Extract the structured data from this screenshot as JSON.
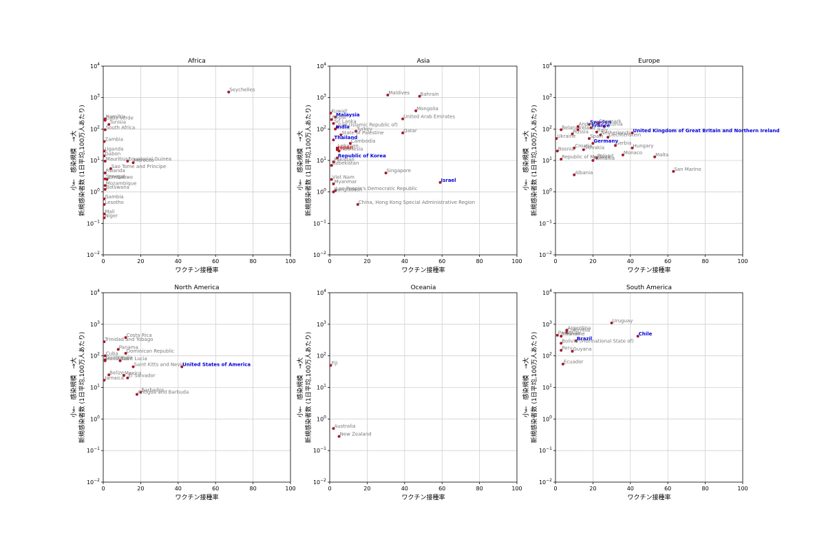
{
  "chart_data": [
    {
      "type": "scatter",
      "title": "Africa",
      "xlabel": "ワクチン接種率",
      "ylabel_line1": "小←　感染規模　→大",
      "ylabel_line2": "新規感染者数 (1日平均,100万人あたり)",
      "xlim": [
        0,
        100
      ],
      "ylim": [
        0.01,
        10000
      ],
      "yscale": "log",
      "grid": true,
      "x_ticks": [
        "0",
        "20",
        "40",
        "60",
        "80",
        "100"
      ],
      "points": [
        {
          "label": "Seychelles",
          "x": 67,
          "y": 1500
        },
        {
          "label": "Cabo Verde",
          "x": 1,
          "y": 190
        },
        {
          "label": "Namibia",
          "x": 1,
          "y": 210
        },
        {
          "label": "Tunisia",
          "x": 3,
          "y": 140
        },
        {
          "label": "South Africa",
          "x": 1,
          "y": 95
        },
        {
          "label": "Zambia",
          "x": 0.5,
          "y": 40
        },
        {
          "label": "Uganda",
          "x": 0.5,
          "y": 20
        },
        {
          "label": "Gabon",
          "x": 0.5,
          "y": 14
        },
        {
          "label": "Mauritius",
          "x": 1,
          "y": 9.5
        },
        {
          "label": "Equatorial Guinea",
          "x": 13,
          "y": 9.5
        },
        {
          "label": "Morocco",
          "x": 16,
          "y": 8.5
        },
        {
          "label": "Sao Tome and Principe",
          "x": 4,
          "y": 5.5
        },
        {
          "label": "Rwanda",
          "x": 1,
          "y": 4
        },
        {
          "label": "Zimbabwe",
          "x": 2,
          "y": 2.5
        },
        {
          "label": "Senegal",
          "x": 1,
          "y": 2.6
        },
        {
          "label": "Mozambique",
          "x": 1,
          "y": 1.6
        },
        {
          "label": "Botswana",
          "x": 1,
          "y": 1.2
        },
        {
          "label": "Gambia",
          "x": 0.5,
          "y": 0.6
        },
        {
          "label": "Lesotho",
          "x": 0.5,
          "y": 0.4
        },
        {
          "label": "Mali",
          "x": 0.5,
          "y": 0.2
        },
        {
          "label": "Niger",
          "x": 0.5,
          "y": 0.15
        }
      ]
    },
    {
      "type": "scatter",
      "title": "Asia",
      "xlabel": "ワクチン接種率",
      "ylabel_line1": "小←　感染規模　→大",
      "ylabel_line2": "新規感染者数 (1日平均,100万人あたり)",
      "xlim": [
        0,
        100
      ],
      "ylim": [
        0.01,
        10000
      ],
      "yscale": "log",
      "grid": true,
      "x_ticks": [
        "0",
        "20",
        "40",
        "60",
        "80",
        "100"
      ],
      "points": [
        {
          "label": "Maldives",
          "x": 31,
          "y": 1200
        },
        {
          "label": "Bahrain",
          "x": 48,
          "y": 1100
        },
        {
          "label": "Mongolia",
          "x": 46,
          "y": 380
        },
        {
          "label": "United Arab Emirates",
          "x": 39,
          "y": 210
        },
        {
          "label": "Kuwait",
          "x": 0.5,
          "y": 320
        },
        {
          "label": "Malaysia",
          "x": 3,
          "y": 240,
          "highlight": true
        },
        {
          "label": "Nepal",
          "x": 1,
          "y": 200
        },
        {
          "label": "Sri Lanka",
          "x": 2,
          "y": 150
        },
        {
          "label": "Iran (Islamic Republic of)",
          "x": 4,
          "y": 115
        },
        {
          "label": "India",
          "x": 3,
          "y": 100,
          "highlight": true
        },
        {
          "label": "Turkey",
          "x": 14,
          "y": 85
        },
        {
          "label": "Qatar",
          "x": 39,
          "y": 75
        },
        {
          "label": "State of Palestine",
          "x": 6,
          "y": 65
        },
        {
          "label": "Thailand",
          "x": 2,
          "y": 45,
          "highlight": true
        },
        {
          "label": "Cambodia",
          "x": 11,
          "y": 35
        },
        {
          "label": "Lebanon",
          "x": 4,
          "y": 25
        },
        {
          "label": "Japan",
          "x": 4,
          "y": 22,
          "red": true
        },
        {
          "label": "Indonesia",
          "x": 5,
          "y": 20
        },
        {
          "label": "Republic of Korea",
          "x": 4,
          "y": 12,
          "highlight": true
        },
        {
          "label": "Pakistan",
          "x": 2,
          "y": 9
        },
        {
          "label": "Uzbekistan",
          "x": 1,
          "y": 7
        },
        {
          "label": "Singapore",
          "x": 30,
          "y": 4
        },
        {
          "label": "Israel",
          "x": 59,
          "y": 2,
          "highlight": true
        },
        {
          "label": "Viet Nam",
          "x": 1,
          "y": 2.5
        },
        {
          "label": "Myanmar",
          "x": 2,
          "y": 1.8
        },
        {
          "label": "Lao People's Democratic Republic",
          "x": 3,
          "y": 1.1
        },
        {
          "label": "Bangladesh",
          "x": 2,
          "y": 1
        },
        {
          "label": "China, Hong Kong Special Administrative Region",
          "x": 15,
          "y": 0.4
        }
      ]
    },
    {
      "type": "scatter",
      "title": "Europe",
      "xlabel": "ワクチン接種率",
      "ylabel_line1": "小←　感染規模　→大",
      "ylabel_line2": "新規感染者数 (1日平均,100万人あたり)",
      "xlim": [
        0,
        100
      ],
      "ylim": [
        0.01,
        10000
      ],
      "yscale": "log",
      "grid": true,
      "x_ticks": [
        "0",
        "20",
        "40",
        "60",
        "80",
        "100"
      ],
      "points": [
        {
          "label": "Sweden",
          "x": 18,
          "y": 140,
          "highlight": true
        },
        {
          "label": "Denmark",
          "x": 23,
          "y": 150
        },
        {
          "label": "Estonia",
          "x": 26,
          "y": 120
        },
        {
          "label": "France",
          "x": 19,
          "y": 110,
          "highlight": true
        },
        {
          "label": "Belarus",
          "x": 3,
          "y": 95
        },
        {
          "label": "Andorra",
          "x": 12,
          "y": 120
        },
        {
          "label": "Ireland",
          "x": 12,
          "y": 95
        },
        {
          "label": "Italy",
          "x": 22,
          "y": 80
        },
        {
          "label": "Russia",
          "x": 9,
          "y": 70
        },
        {
          "label": "Netherlands",
          "x": 24,
          "y": 65
        },
        {
          "label": "Liechtenstein",
          "x": 28,
          "y": 55
        },
        {
          "label": "United Kingdom of Great Britain and Northern Ireland",
          "x": 41,
          "y": 75,
          "highlight": true
        },
        {
          "label": "Ukraine",
          "x": 0.5,
          "y": 50
        },
        {
          "label": "Spain",
          "x": 18,
          "y": 50
        },
        {
          "label": "Germany",
          "x": 20,
          "y": 35,
          "highlight": true
        },
        {
          "label": "Serbia",
          "x": 32,
          "y": 30
        },
        {
          "label": "Hungary",
          "x": 41,
          "y": 25
        },
        {
          "label": "Croatia",
          "x": 10,
          "y": 25
        },
        {
          "label": "Slovakia",
          "x": 15,
          "y": 22
        },
        {
          "label": "Bosnia",
          "x": 1,
          "y": 20
        },
        {
          "label": "Monaco",
          "x": 36,
          "y": 15
        },
        {
          "label": "Malta",
          "x": 53,
          "y": 13
        },
        {
          "label": "Republic of Moldova",
          "x": 3,
          "y": 11
        },
        {
          "label": "Poland",
          "x": 22,
          "y": 12
        },
        {
          "label": "Romania",
          "x": 20,
          "y": 10
        },
        {
          "label": "San Marino",
          "x": 63,
          "y": 4.5
        },
        {
          "label": "Albania",
          "x": 10,
          "y": 3.5
        }
      ]
    },
    {
      "type": "scatter",
      "title": "North America",
      "xlabel": "ワクチン接種率",
      "ylabel_line1": "小←　感染規模　→大",
      "ylabel_line2": "新規感染者数 (1日平均,100万人あたり)",
      "xlim": [
        0,
        100
      ],
      "ylim": [
        0.01,
        10000
      ],
      "yscale": "log",
      "grid": true,
      "x_ticks": [
        "0",
        "20",
        "40",
        "60",
        "80",
        "100"
      ],
      "points": [
        {
          "label": "Costa Rica",
          "x": 12,
          "y": 380
        },
        {
          "label": "Trinidad and Tobago",
          "x": 0.5,
          "y": 280
        },
        {
          "label": "Panama",
          "x": 8,
          "y": 160
        },
        {
          "label": "Dominican Republic",
          "x": 12,
          "y": 120
        },
        {
          "label": "Cuba",
          "x": 1,
          "y": 100
        },
        {
          "label": "Guatemala",
          "x": 1,
          "y": 75
        },
        {
          "label": "Honduras",
          "x": 1,
          "y": 70
        },
        {
          "label": "Saint Lucia",
          "x": 9,
          "y": 70
        },
        {
          "label": "Saint Kitts and Nevis",
          "x": 16,
          "y": 45
        },
        {
          "label": "United States of America",
          "x": 42,
          "y": 45,
          "highlight": true
        },
        {
          "label": "Belize",
          "x": 3,
          "y": 25
        },
        {
          "label": "Mexico",
          "x": 11,
          "y": 24
        },
        {
          "label": "El Salvador",
          "x": 13,
          "y": 20
        },
        {
          "label": "Jamaica",
          "x": 0.5,
          "y": 17
        },
        {
          "label": "Barbados",
          "x": 20,
          "y": 7
        },
        {
          "label": "Antigua and Barbuda",
          "x": 18,
          "y": 6
        }
      ]
    },
    {
      "type": "scatter",
      "title": "Oceania",
      "xlabel": "ワクチン接種率",
      "ylabel_line1": "小←　感染規模　→大",
      "ylabel_line2": "新規感染者数 (1日平均,100万人あたり)",
      "xlim": [
        0,
        100
      ],
      "ylim": [
        0.01,
        10000
      ],
      "yscale": "log",
      "grid": true,
      "x_ticks": [
        "0",
        "20",
        "40",
        "60",
        "80",
        "100"
      ],
      "points": [
        {
          "label": "Fiji",
          "x": 0.5,
          "y": 50
        },
        {
          "label": "Australia",
          "x": 2,
          "y": 0.5
        },
        {
          "label": "New Zealand",
          "x": 5,
          "y": 0.28
        }
      ]
    },
    {
      "type": "scatter",
      "title": "South America",
      "xlabel": "ワクチン接種率",
      "ylabel_line1": "小←　感染規模　→大",
      "ylabel_line2": "新規感染者数 (1日平均,100万人あたり)",
      "xlim": [
        0,
        100
      ],
      "ylim": [
        0.01,
        10000
      ],
      "yscale": "log",
      "grid": true,
      "x_ticks": [
        "0",
        "20",
        "40",
        "60",
        "80",
        "100"
      ],
      "points": [
        {
          "label": "Uruguay",
          "x": 30,
          "y": 1100
        },
        {
          "label": "Argentina",
          "x": 6,
          "y": 650
        },
        {
          "label": "Colombia",
          "x": 6,
          "y": 550
        },
        {
          "label": "Paraguay",
          "x": 1,
          "y": 450
        },
        {
          "label": "Suriname",
          "x": 3,
          "y": 420
        },
        {
          "label": "Chile",
          "x": 44,
          "y": 420,
          "highlight": true
        },
        {
          "label": "Brazil",
          "x": 11,
          "y": 300,
          "highlight": true
        },
        {
          "label": "Bolivia (Plurinational State of)",
          "x": 3,
          "y": 250
        },
        {
          "label": "Peru",
          "x": 3,
          "y": 150
        },
        {
          "label": "Guyana",
          "x": 9,
          "y": 140
        },
        {
          "label": "Ecuador",
          "x": 4,
          "y": 55
        }
      ]
    }
  ]
}
